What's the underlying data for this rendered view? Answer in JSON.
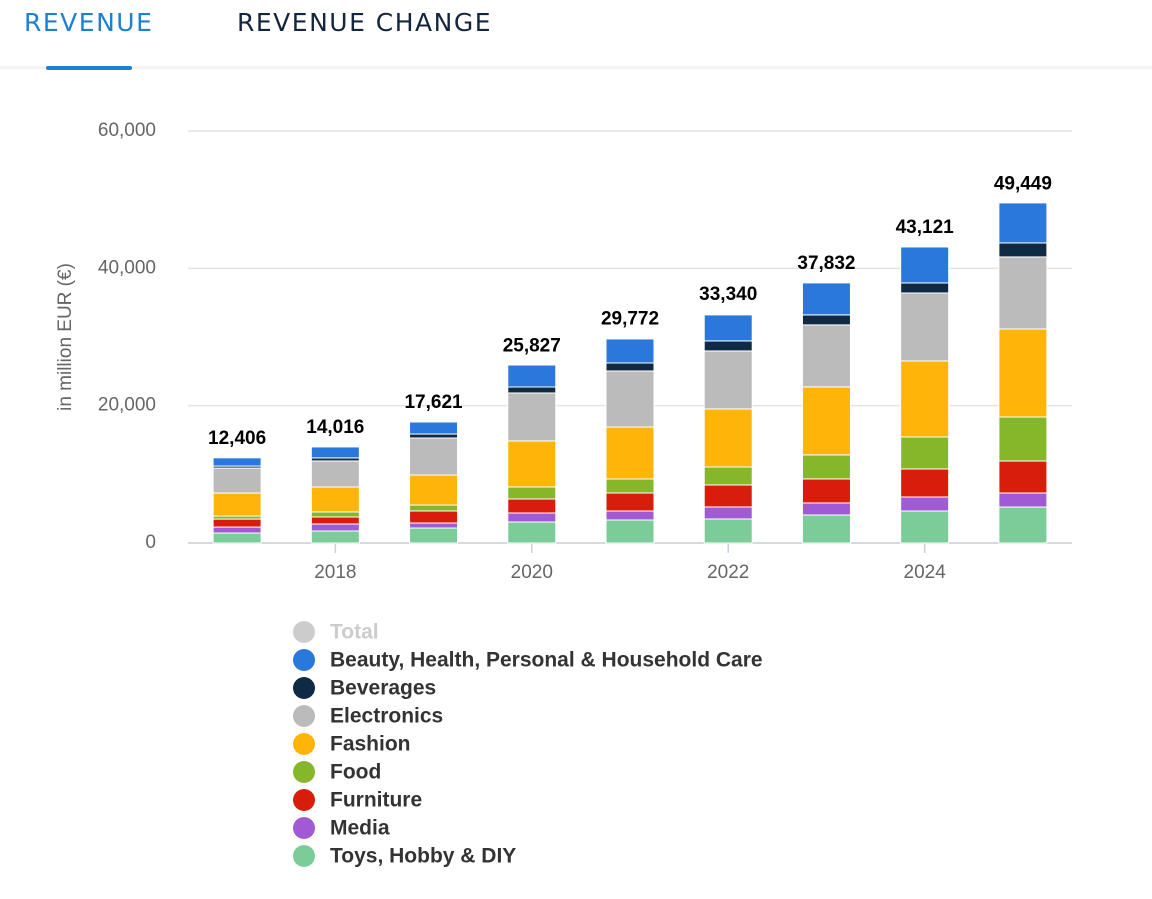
{
  "tabs": [
    "REVENUE",
    "REVENUE CHANGE"
  ],
  "chart_data": {
    "type": "stacked-bar",
    "y_label": "in million EUR (€)",
    "categories": [
      null,
      "2018",
      null,
      "2020",
      null,
      "2022",
      null,
      "2024",
      null
    ],
    "ylim": [
      0,
      60000
    ],
    "yticks": [
      0,
      {
        "value": 20000,
        "label": "20,000"
      },
      {
        "value": 40000,
        "label": "40,000"
      },
      {
        "value": 60000,
        "label": "60,000"
      }
    ],
    "grid": true,
    "series": [
      {
        "name": "Total",
        "color": "#cccccc",
        "visible": false,
        "values": [
          12406,
          14016,
          17621,
          25827,
          29772,
          33340,
          37832,
          43121,
          49449
        ],
        "value_labels": [
          "12,406",
          "14,016",
          "17,621",
          "25,827",
          "29,772",
          "33,340",
          "37,832",
          "43,121",
          "49,449"
        ]
      },
      {
        "name": "Beauty, Health, Personal & Household Care",
        "color": "#2a78dc",
        "values": [
          1200,
          1600,
          1750,
          3200,
          3500,
          3790,
          4660,
          5240,
          5830
        ]
      },
      {
        "name": "Beverages",
        "color": "#0f2a45",
        "values": [
          290,
          440,
          580,
          870,
          1165,
          1460,
          1460,
          1460,
          2040
        ]
      },
      {
        "name": "Electronics",
        "color": "#bbbbbb",
        "values": [
          3640,
          3790,
          5390,
          6990,
          8160,
          8450,
          9030,
          9900,
          10490
        ]
      },
      {
        "name": "Fashion",
        "color": "#ffb40a",
        "values": [
          3350,
          3640,
          4370,
          6700,
          7570,
          8450,
          9900,
          11070,
          12820
        ]
      },
      {
        "name": "Food",
        "color": "#84b82a",
        "values": [
          440,
          730,
          870,
          1750,
          2040,
          2620,
          3500,
          4660,
          6410
        ]
      },
      {
        "name": "Furniture",
        "color": "#d81e0a",
        "values": [
          1165,
          1020,
          1750,
          2040,
          2620,
          3200,
          3500,
          4080,
          4660
        ]
      },
      {
        "name": "Media",
        "color": "#a15ad3",
        "values": [
          870,
          1020,
          730,
          1310,
          1310,
          1750,
          1750,
          2040,
          2040
        ]
      },
      {
        "name": "Toys, Hobby & DIY",
        "color": "#7ccc9a",
        "values": [
          1450,
          1750,
          2180,
          3060,
          3350,
          3500,
          4080,
          4660,
          5240
        ]
      }
    ]
  }
}
